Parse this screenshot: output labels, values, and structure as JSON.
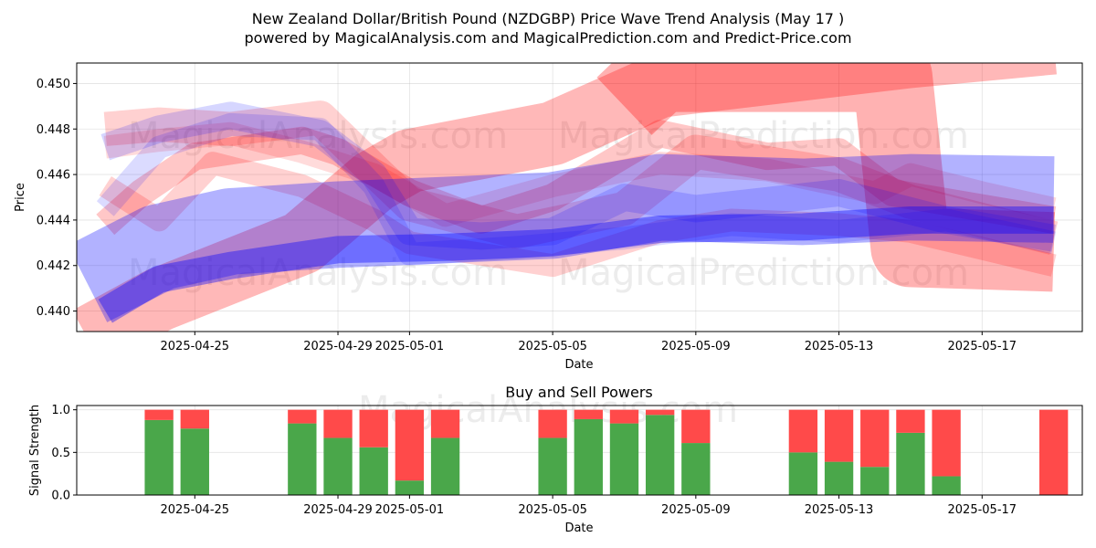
{
  "title_line1": "New Zealand Dollar/British Pound (NZDGBP) Price Wave Trend Analysis (May 17 )",
  "title_line2": "powered by MagicalAnalysis.com and MagicalPrediction.com and Predict-Price.com",
  "watermarks": [
    "MagicalAnalysis.com",
    "MagicalPrediction.com"
  ],
  "colors": {
    "red": "#ff0000",
    "blue": "#0000ff",
    "buy": "#4aa74a",
    "sell": "#ff4a4a"
  },
  "chart_data": [
    {
      "type": "line",
      "title": "",
      "xlabel": "Date",
      "ylabel": "Price",
      "x_domain_days": [
        -3.3,
        24.8
      ],
      "ylim": [
        0.4391,
        0.4509
      ],
      "x_ticks": [
        {
          "day": 0,
          "label": "2025-04-25"
        },
        {
          "day": 4,
          "label": "2025-04-29"
        },
        {
          "day": 6,
          "label": "2025-05-01"
        },
        {
          "day": 10,
          "label": "2025-05-05"
        },
        {
          "day": 14,
          "label": "2025-05-09"
        },
        {
          "day": 18,
          "label": "2025-05-13"
        },
        {
          "day": 22,
          "label": "2025-05-17"
        }
      ],
      "y_ticks": [
        {
          "value": 0.44,
          "label": "0.440"
        },
        {
          "value": 0.442,
          "label": "0.442"
        },
        {
          "value": 0.444,
          "label": "0.444"
        },
        {
          "value": 0.446,
          "label": "0.446"
        },
        {
          "value": 0.448,
          "label": "0.448"
        },
        {
          "value": 0.45,
          "label": "0.450"
        }
      ],
      "series": [
        {
          "name": "red-wave-1",
          "color": "red",
          "opacity": 0.28,
          "width": 0.0028,
          "x": [
            -3,
            -1,
            3,
            5,
            6,
            10,
            13,
            20,
            24
          ],
          "y": [
            0.4388,
            0.4405,
            0.443,
            0.4457,
            0.4466,
            0.4478,
            0.4499,
            0.4512,
            0.4518
          ]
        },
        {
          "name": "red-wave-2",
          "color": "red",
          "opacity": 0.3,
          "width": 0.0035,
          "x": [
            12,
            13,
            18.5,
            19.5,
            20,
            24
          ],
          "y": [
            0.449,
            0.4505,
            0.4505,
            0.4503,
            0.4428,
            0.4426
          ]
        },
        {
          "name": "red-wave-3",
          "color": "red",
          "opacity": 0.22,
          "width": 0.0012,
          "x": [
            -2.5,
            -1.5,
            0,
            3,
            4,
            6,
            8,
            10,
            13,
            16,
            18,
            19.5,
            21,
            24
          ],
          "y": [
            0.4438,
            0.4452,
            0.4468,
            0.4475,
            0.447,
            0.4452,
            0.444,
            0.445,
            0.4478,
            0.4468,
            0.447,
            0.4452,
            0.4448,
            0.444
          ]
        },
        {
          "name": "red-wave-4",
          "color": "red",
          "opacity": 0.18,
          "width": 0.0015,
          "x": [
            -2.5,
            -1,
            1,
            3.5,
            5,
            6,
            9,
            12,
            14,
            18,
            20,
            24
          ],
          "y": [
            0.448,
            0.4482,
            0.448,
            0.4485,
            0.4462,
            0.4447,
            0.4435,
            0.4445,
            0.447,
            0.446,
            0.4448,
            0.4432
          ]
        },
        {
          "name": "red-wave-5",
          "color": "red",
          "opacity": 0.14,
          "width": 0.001,
          "x": [
            -2.5,
            -1,
            1,
            3,
            5,
            7,
            10,
            13,
            16,
            19,
            20,
            22,
            24
          ],
          "y": [
            0.4472,
            0.4475,
            0.4478,
            0.447,
            0.446,
            0.4442,
            0.4455,
            0.4465,
            0.4462,
            0.4452,
            0.446,
            0.4452,
            0.4445
          ]
        },
        {
          "name": "red-wave-6",
          "color": "red",
          "opacity": 0.18,
          "width": 0.001,
          "x": [
            -2.5,
            -1,
            0.5,
            3,
            5,
            6,
            8,
            10,
            13,
            15,
            18,
            20,
            24
          ],
          "y": [
            0.4455,
            0.444,
            0.4465,
            0.4455,
            0.444,
            0.443,
            0.4425,
            0.442,
            0.4435,
            0.444,
            0.4438,
            0.4435,
            0.442
          ]
        },
        {
          "name": "blue-wave-1",
          "color": "blue",
          "opacity": 0.3,
          "width": 0.0038,
          "x": [
            -3,
            -1,
            1,
            4,
            7,
            10,
            13,
            17,
            20,
            24
          ],
          "y": [
            0.4412,
            0.4428,
            0.4435,
            0.4438,
            0.444,
            0.4442,
            0.445,
            0.4448,
            0.445,
            0.4449
          ]
        },
        {
          "name": "blue-wave-2",
          "color": "blue",
          "opacity": 0.38,
          "width": 0.0012,
          "x": [
            -2.5,
            -1,
            1,
            4,
            7,
            10,
            13,
            17,
            20,
            24
          ],
          "y": [
            0.44,
            0.4414,
            0.442,
            0.4427,
            0.4428,
            0.443,
            0.4436,
            0.4437,
            0.444,
            0.444
          ]
        },
        {
          "name": "blue-wave-3",
          "color": "blue",
          "opacity": 0.16,
          "width": 0.0012,
          "x": [
            -2.5,
            -1,
            1,
            3.5,
            5,
            6,
            8,
            10,
            12,
            14,
            18,
            21,
            24
          ],
          "y": [
            0.4472,
            0.448,
            0.4486,
            0.4478,
            0.446,
            0.4435,
            0.4433,
            0.4435,
            0.445,
            0.4445,
            0.4452,
            0.444,
            0.4432
          ]
        },
        {
          "name": "blue-wave-4",
          "color": "blue",
          "opacity": 0.14,
          "width": 0.001,
          "x": [
            -2.5,
            -1,
            1,
            3.5,
            5,
            6,
            9,
            12,
            15,
            18,
            21,
            24
          ],
          "y": [
            0.4445,
            0.4472,
            0.4482,
            0.448,
            0.4455,
            0.4425,
            0.4428,
            0.4432,
            0.4438,
            0.4435,
            0.444,
            0.443
          ]
        }
      ]
    },
    {
      "type": "bar",
      "title": "Buy and Sell Powers",
      "xlabel": "Date",
      "ylabel": "Signal Strength",
      "ylim": [
        0,
        1.05
      ],
      "y_ticks": [
        {
          "value": 0.0,
          "label": "0.0"
        },
        {
          "value": 0.5,
          "label": "0.5"
        },
        {
          "value": 1.0,
          "label": "1.0"
        }
      ],
      "x_ticks": [
        {
          "day": 0,
          "label": "2025-04-25"
        },
        {
          "day": 4,
          "label": "2025-04-29"
        },
        {
          "day": 6,
          "label": "2025-05-01"
        },
        {
          "day": 10,
          "label": "2025-05-05"
        },
        {
          "day": 14,
          "label": "2025-05-09"
        },
        {
          "day": 18,
          "label": "2025-05-13"
        },
        {
          "day": 22,
          "label": "2025-05-17"
        }
      ],
      "bars": [
        {
          "day": -1,
          "buy": 0.88
        },
        {
          "day": 0,
          "buy": 0.78
        },
        {
          "day": 3,
          "buy": 0.84
        },
        {
          "day": 4,
          "buy": 0.67
        },
        {
          "day": 5,
          "buy": 0.56
        },
        {
          "day": 6,
          "buy": 0.17
        },
        {
          "day": 7,
          "buy": 0.67
        },
        {
          "day": 10,
          "buy": 0.67
        },
        {
          "day": 11,
          "buy": 0.89
        },
        {
          "day": 12,
          "buy": 0.84
        },
        {
          "day": 13,
          "buy": 0.94
        },
        {
          "day": 14,
          "buy": 0.61
        },
        {
          "day": 17,
          "buy": 0.5
        },
        {
          "day": 18,
          "buy": 0.39
        },
        {
          "day": 19,
          "buy": 0.33
        },
        {
          "day": 20,
          "buy": 0.73
        },
        {
          "day": 21,
          "buy": 0.22
        },
        {
          "day": 24,
          "buy": 0.0
        }
      ]
    }
  ]
}
